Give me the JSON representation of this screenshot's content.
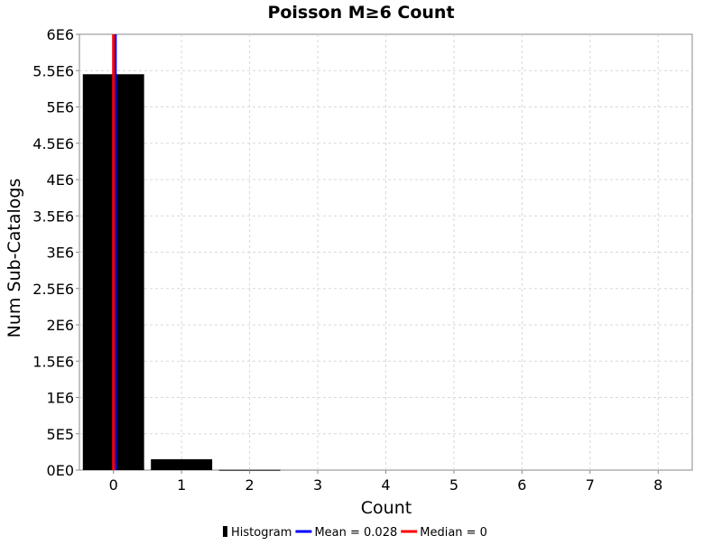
{
  "chart_data": {
    "type": "bar",
    "title": "Poisson M≥6 Count",
    "xlabel": "Count",
    "ylabel": "Num Sub-Catalogs",
    "xlim": [
      -0.5,
      8.5
    ],
    "ylim": [
      0,
      6000000
    ],
    "x_ticks": [
      "0",
      "1",
      "2",
      "3",
      "4",
      "5",
      "6",
      "7",
      "8"
    ],
    "y_ticks": [
      "0E0",
      "5E5",
      "1E6",
      "1.5E6",
      "2E6",
      "2.5E6",
      "3E6",
      "3.5E6",
      "4E6",
      "4.5E6",
      "5E6",
      "5.5E6",
      "6E6"
    ],
    "grid": true,
    "legend_position": "bottom",
    "series": [
      {
        "name": "Histogram",
        "kind": "bar",
        "color": "#000000",
        "x": [
          0,
          1,
          2,
          3,
          4,
          5,
          6,
          7,
          8
        ],
        "values": [
          5450000,
          150000,
          4000,
          0,
          0,
          0,
          0,
          0,
          0
        ]
      },
      {
        "name": "Mean = 0.028",
        "kind": "vline",
        "x": 0.028,
        "color": "#0000ff"
      },
      {
        "name": "Median = 0",
        "kind": "vline",
        "x": 0,
        "color": "#ff0000"
      }
    ]
  }
}
